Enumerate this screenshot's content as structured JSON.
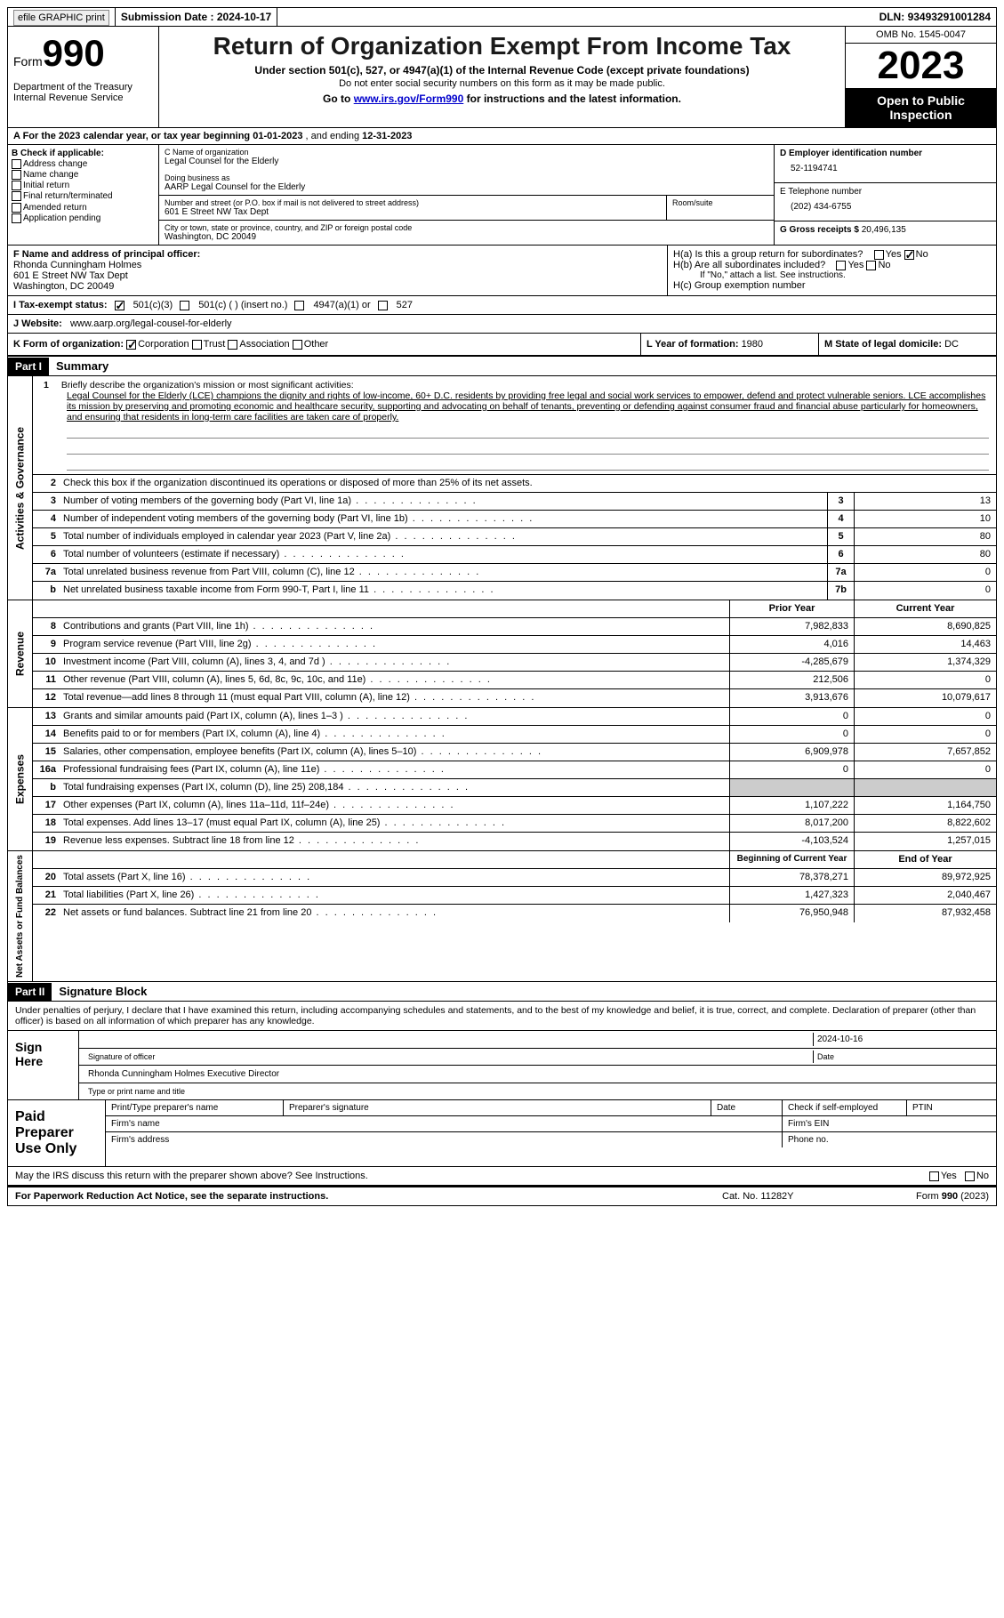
{
  "topbar": {
    "efile_label": "efile GRAPHIC print",
    "submission_label": "Submission Date : ",
    "submission_date": "2024-10-17",
    "dln_label": "DLN: ",
    "dln": "93493291001284"
  },
  "header": {
    "form_prefix": "Form",
    "form_number": "990",
    "dept": "Department of the Treasury Internal Revenue Service",
    "title": "Return of Organization Exempt From Income Tax",
    "sub1": "Under section 501(c), 527, or 4947(a)(1) of the Internal Revenue Code (except private foundations)",
    "sub2": "Do not enter social security numbers on this form as it may be made public.",
    "sub3_prefix": "Go to ",
    "sub3_link": "www.irs.gov/Form990",
    "sub3_suffix": " for instructions and the latest information.",
    "omb": "OMB No. 1545-0047",
    "year": "2023",
    "inspection": "Open to Public Inspection"
  },
  "line_a": {
    "prefix": "A For the 2023 calendar year, or tax year beginning ",
    "begin": "01-01-2023",
    "mid": "   , and ending ",
    "end": "12-31-2023"
  },
  "col_b": {
    "title": "B Check if applicable:",
    "items": [
      "Address change",
      "Name change",
      "Initial return",
      "Final return/terminated",
      "Amended return",
      "Application pending"
    ]
  },
  "col_c": {
    "name_label": "C Name of organization",
    "name": "Legal Counsel for the Elderly",
    "dba_label": "Doing business as",
    "dba": "AARP Legal Counsel for the Elderly",
    "street_label": "Number and street (or P.O. box if mail is not delivered to street address)",
    "street": "601 E Street NW Tax Dept",
    "room_label": "Room/suite",
    "city_label": "City or town, state or province, country, and ZIP or foreign postal code",
    "city": "Washington, DC  20049"
  },
  "col_d": {
    "ein_label": "D Employer identification number",
    "ein": "52-1194741",
    "phone_label": "E Telephone number",
    "phone": "(202) 434-6755",
    "gross_label": "G Gross receipts $ ",
    "gross": "20,496,135"
  },
  "section_f": {
    "label": "F  Name and address of principal officer:",
    "name": "Rhonda Cunningham Holmes",
    "street": "601 E Street NW Tax Dept",
    "city": "Washington, DC  20049",
    "ha": "H(a)  Is this a group return for subordinates?",
    "ha_yes": "Yes",
    "ha_no": "No",
    "hb": "H(b)  Are all subordinates included?",
    "hb_note": "If \"No,\" attach a list. See instructions.",
    "hc": "H(c)  Group exemption number"
  },
  "section_i": {
    "label": "I  Tax-exempt status:",
    "opt1": "501(c)(3)",
    "opt2": "501(c) (  ) (insert no.)",
    "opt3": "4947(a)(1) or",
    "opt4": "527"
  },
  "section_j": {
    "label": "J  Website:",
    "url": "www.aarp.org/legal-cousel-for-elderly"
  },
  "section_k": {
    "label": "K Form of organization:",
    "opts": [
      "Corporation",
      "Trust",
      "Association",
      "Other"
    ],
    "year_label": "L Year of formation: ",
    "year": "1980",
    "domicile_label": "M State of legal domicile: ",
    "domicile": "DC"
  },
  "part1": {
    "header": "Part I",
    "title": "Summary",
    "q1_label": "1",
    "q1": "Briefly describe the organization's mission or most significant activities:",
    "mission": "Legal Counsel for the Elderly (LCE) champions the dignity and rights of low-income, 60+ D.C. residents by providing free legal and social work services to empower, defend and protect vulnerable seniors. LCE accomplishes its mission by preserving and promoting economic and healthcare security, supporting and advocating on behalf of tenants, preventing or defending against consumer fraud and financial abuse particularly for homeowners, and ensuring that residents in long-term care facilities are taken care of properly.",
    "q2": "Check this box      if the organization discontinued its operations or disposed of more than 25% of its net assets.",
    "lines_gov": [
      {
        "n": "3",
        "d": "Number of voting members of the governing body (Part VI, line 1a)",
        "box": "3",
        "v": "13"
      },
      {
        "n": "4",
        "d": "Number of independent voting members of the governing body (Part VI, line 1b)",
        "box": "4",
        "v": "10"
      },
      {
        "n": "5",
        "d": "Total number of individuals employed in calendar year 2023 (Part V, line 2a)",
        "box": "5",
        "v": "80"
      },
      {
        "n": "6",
        "d": "Total number of volunteers (estimate if necessary)",
        "box": "6",
        "v": "80"
      },
      {
        "n": "7a",
        "d": "Total unrelated business revenue from Part VIII, column (C), line 12",
        "box": "7a",
        "v": "0"
      },
      {
        "n": "b",
        "d": "Net unrelated business taxable income from Form 990-T, Part I, line 11",
        "box": "7b",
        "v": "0"
      }
    ],
    "prior_year": "Prior Year",
    "current_year": "Current Year",
    "lines_rev": [
      {
        "n": "8",
        "d": "Contributions and grants (Part VIII, line 1h)",
        "py": "7,982,833",
        "cy": "8,690,825"
      },
      {
        "n": "9",
        "d": "Program service revenue (Part VIII, line 2g)",
        "py": "4,016",
        "cy": "14,463"
      },
      {
        "n": "10",
        "d": "Investment income (Part VIII, column (A), lines 3, 4, and 7d )",
        "py": "-4,285,679",
        "cy": "1,374,329"
      },
      {
        "n": "11",
        "d": "Other revenue (Part VIII, column (A), lines 5, 6d, 8c, 9c, 10c, and 11e)",
        "py": "212,506",
        "cy": "0"
      },
      {
        "n": "12",
        "d": "Total revenue—add lines 8 through 11 (must equal Part VIII, column (A), line 12)",
        "py": "3,913,676",
        "cy": "10,079,617"
      }
    ],
    "lines_exp": [
      {
        "n": "13",
        "d": "Grants and similar amounts paid (Part IX, column (A), lines 1–3 )",
        "py": "0",
        "cy": "0"
      },
      {
        "n": "14",
        "d": "Benefits paid to or for members (Part IX, column (A), line 4)",
        "py": "0",
        "cy": "0"
      },
      {
        "n": "15",
        "d": "Salaries, other compensation, employee benefits (Part IX, column (A), lines 5–10)",
        "py": "6,909,978",
        "cy": "7,657,852"
      },
      {
        "n": "16a",
        "d": "Professional fundraising fees (Part IX, column (A), line 11e)",
        "py": "0",
        "cy": "0"
      },
      {
        "n": "b",
        "d": "Total fundraising expenses (Part IX, column (D), line 25) 208,184",
        "py": "",
        "cy": "",
        "shaded": true
      },
      {
        "n": "17",
        "d": "Other expenses (Part IX, column (A), lines 11a–11d, 11f–24e)",
        "py": "1,107,222",
        "cy": "1,164,750"
      },
      {
        "n": "18",
        "d": "Total expenses. Add lines 13–17 (must equal Part IX, column (A), line 25)",
        "py": "8,017,200",
        "cy": "8,822,602"
      },
      {
        "n": "19",
        "d": "Revenue less expenses. Subtract line 18 from line 12",
        "py": "-4,103,524",
        "cy": "1,257,015"
      }
    ],
    "begin_year": "Beginning of Current Year",
    "end_year": "End of Year",
    "lines_net": [
      {
        "n": "20",
        "d": "Total assets (Part X, line 16)",
        "py": "78,378,271",
        "cy": "89,972,925"
      },
      {
        "n": "21",
        "d": "Total liabilities (Part X, line 26)",
        "py": "1,427,323",
        "cy": "2,040,467"
      },
      {
        "n": "22",
        "d": "Net assets or fund balances. Subtract line 21 from line 20",
        "py": "76,950,948",
        "cy": "87,932,458"
      }
    ],
    "vtab_gov": "Activities & Governance",
    "vtab_rev": "Revenue",
    "vtab_exp": "Expenses",
    "vtab_net": "Net Assets or Fund Balances"
  },
  "part2": {
    "header": "Part II",
    "title": "Signature Block",
    "declaration": "Under penalties of perjury, I declare that I have examined this return, including accompanying schedules and statements, and to the best of my knowledge and belief, it is true, correct, and complete. Declaration of preparer (other than officer) is based on all information of which preparer has any knowledge.",
    "sign_here": "Sign Here",
    "sig_date": "2024-10-16",
    "sig_officer_label": "Signature of officer",
    "sig_date_label": "Date",
    "sig_name": "Rhonda Cunningham Holmes  Executive Director",
    "sig_name_label": "Type or print name and title",
    "paid_prep": "Paid Preparer Use Only",
    "prep_name_label": "Print/Type preparer's name",
    "prep_sig_label": "Preparer's signature",
    "prep_date_label": "Date",
    "prep_check_label": "Check       if self-employed",
    "ptin_label": "PTIN",
    "firm_name_label": "Firm's name",
    "firm_ein_label": "Firm's EIN",
    "firm_addr_label": "Firm's address",
    "phone_label": "Phone no."
  },
  "footer": {
    "discuss": "May the IRS discuss this return with the preparer shown above? See Instructions.",
    "yes": "Yes",
    "no": "No",
    "paperwork": "For Paperwork Reduction Act Notice, see the separate instructions.",
    "cat": "Cat. No. 11282Y",
    "form": "Form 990 (2023)"
  },
  "colors": {
    "link": "#0000cc",
    "black": "#000000",
    "shade": "#cccccc"
  }
}
